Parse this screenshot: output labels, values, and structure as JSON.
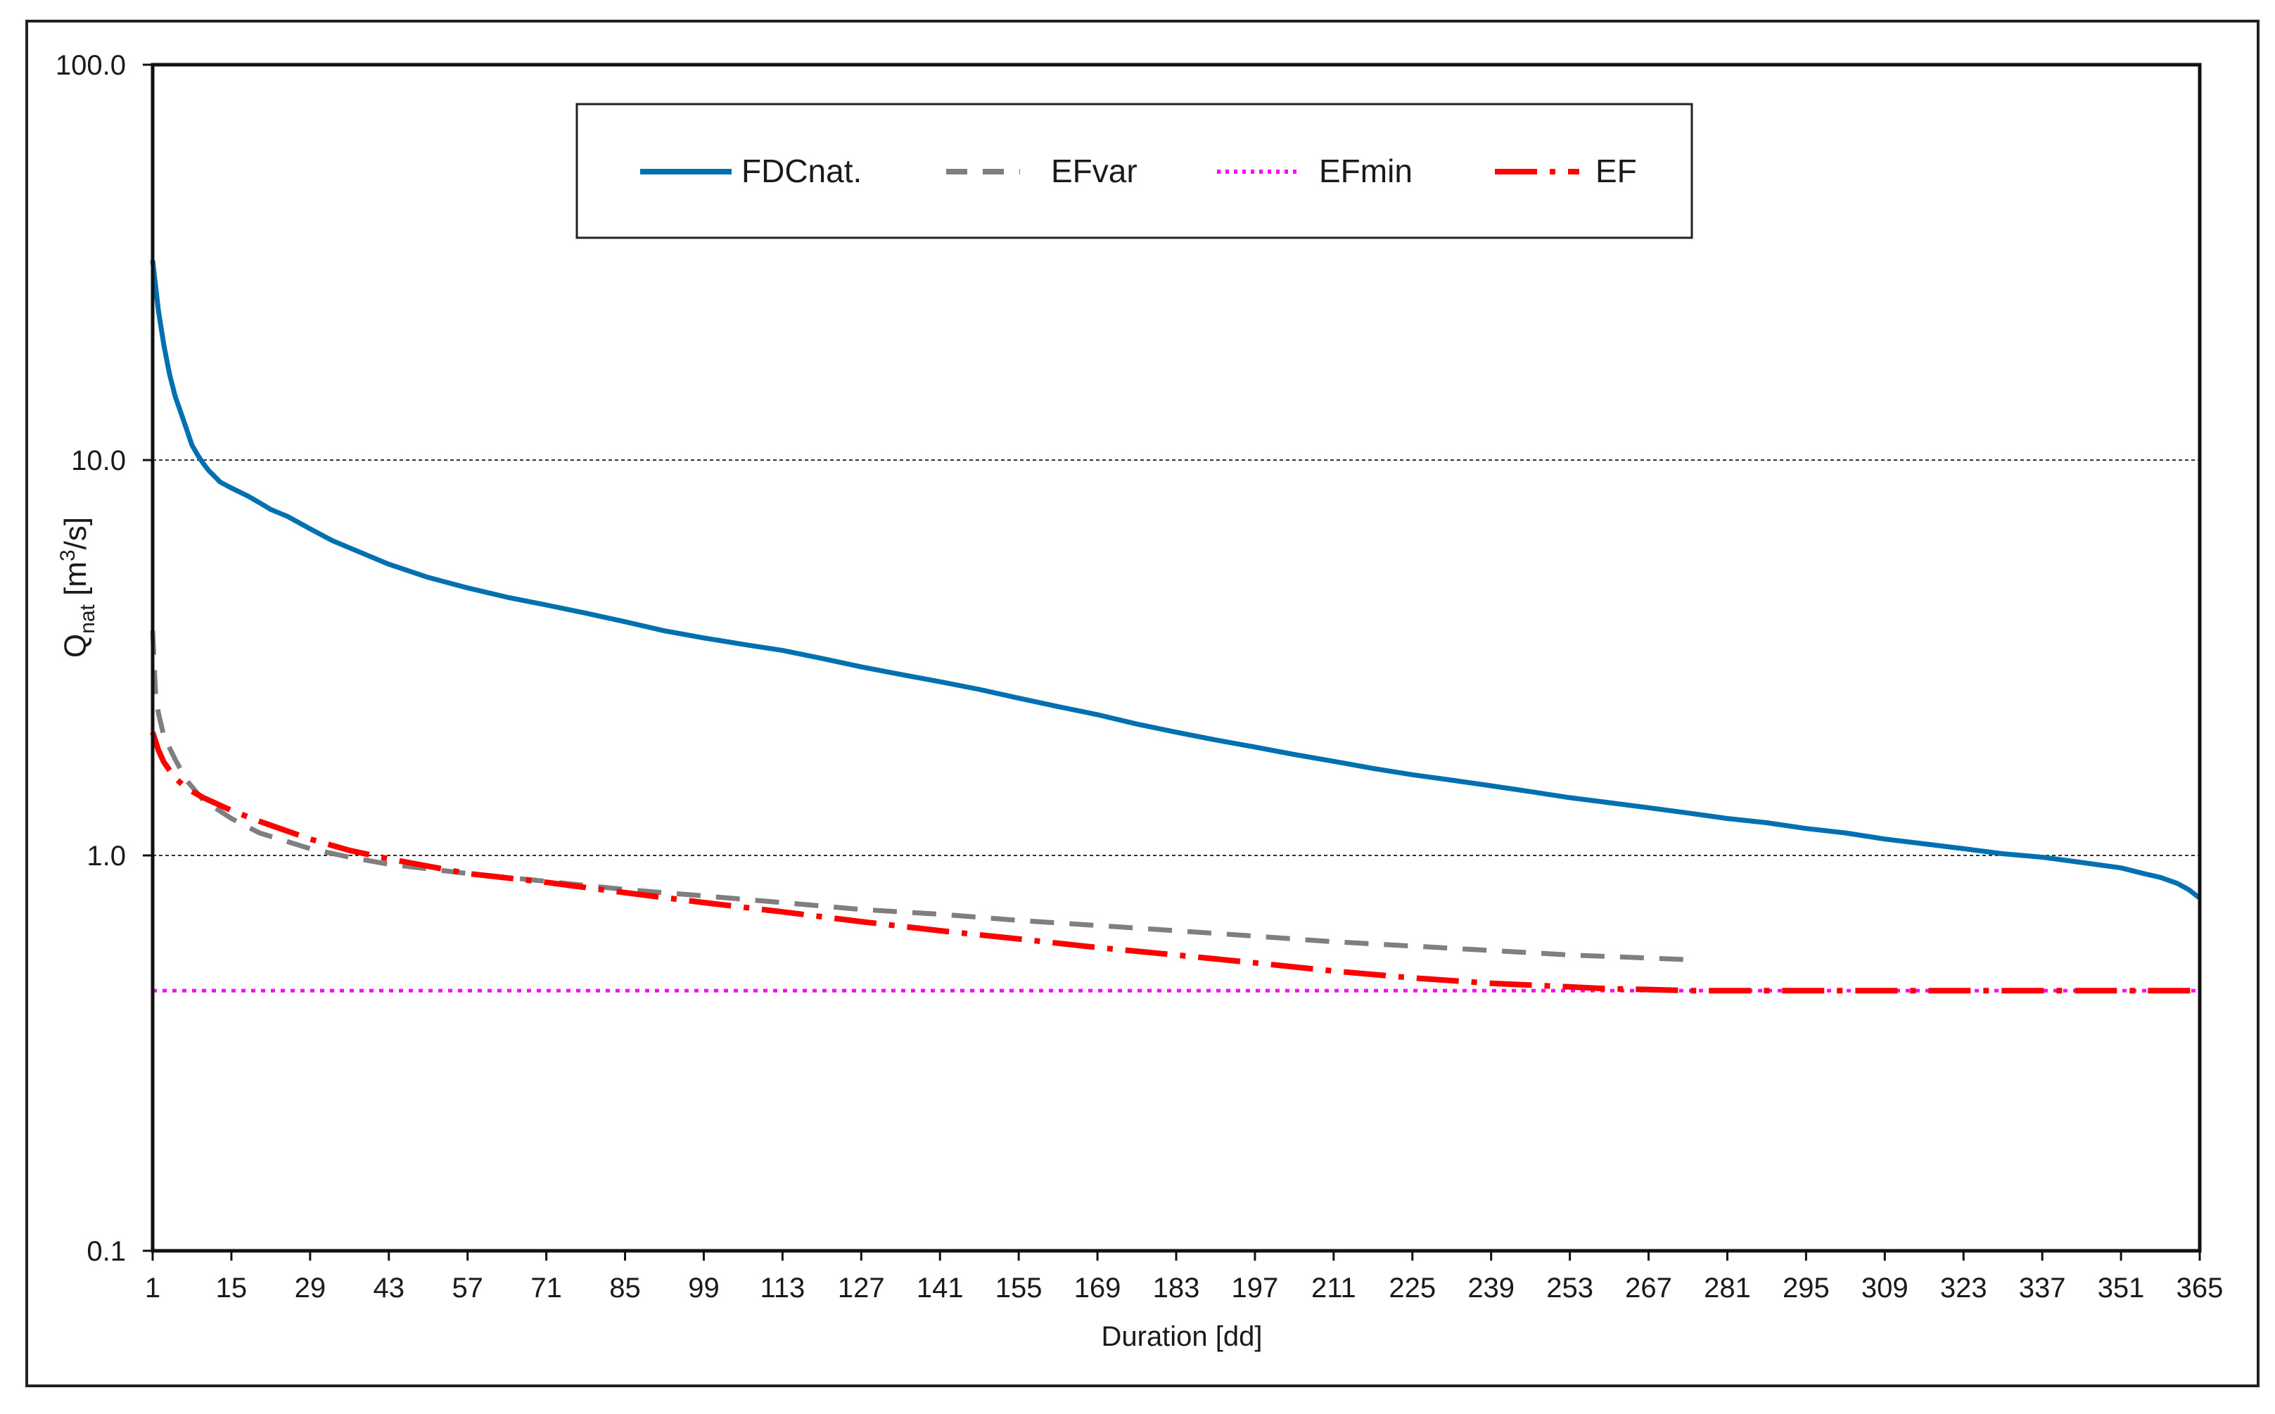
{
  "chart_data": {
    "type": "line",
    "yscale": "log",
    "xlabel": "Duration [dd]",
    "ylabel_main": "Q",
    "ylabel_sub": "nat",
    "ylabel_unit_pre": " [m",
    "ylabel_unit_sup": "3",
    "ylabel_unit_post": "/s]",
    "xlim": [
      1,
      365
    ],
    "ylim": [
      0.1,
      100
    ],
    "x_ticks": [
      "1",
      "15",
      "29",
      "43",
      "57",
      "71",
      "85",
      "99",
      "113",
      "127",
      "141",
      "155",
      "169",
      "183",
      "197",
      "211",
      "225",
      "239",
      "253",
      "267",
      "281",
      "295",
      "309",
      "323",
      "337",
      "351",
      "365"
    ],
    "x_tick_values": [
      1,
      15,
      29,
      43,
      57,
      71,
      85,
      99,
      113,
      127,
      141,
      155,
      169,
      183,
      197,
      211,
      225,
      239,
      253,
      267,
      281,
      295,
      309,
      323,
      337,
      351,
      365
    ],
    "y_ticks": [
      "0.1",
      "1.0",
      "10.0",
      "100.0"
    ],
    "y_tick_values": [
      0.1,
      1,
      10,
      100
    ],
    "gridlines_y": [
      1,
      10
    ],
    "legend_position": "top-center",
    "series": [
      {
        "name": "FDCnat.",
        "color": "#0070b0",
        "style": "solid",
        "x": [
          1,
          2,
          3,
          4,
          5,
          6,
          7,
          8,
          9,
          10,
          11,
          12,
          13,
          15,
          18,
          20,
          22,
          25,
          29,
          33,
          36,
          43,
          50,
          57,
          64,
          71,
          78,
          85,
          92,
          99,
          106,
          113,
          120,
          127,
          134,
          141,
          148,
          155,
          162,
          169,
          176,
          183,
          190,
          197,
          204,
          211,
          218,
          225,
          232,
          239,
          246,
          253,
          260,
          267,
          274,
          281,
          288,
          295,
          302,
          309,
          316,
          323,
          330,
          337,
          344,
          351,
          355,
          358,
          361,
          363,
          365
        ],
        "y": [
          32,
          24,
          19.5,
          16.5,
          14.5,
          13.2,
          12,
          10.9,
          10.3,
          9.8,
          9.4,
          9.1,
          8.8,
          8.5,
          8.1,
          7.8,
          7.5,
          7.2,
          6.7,
          6.25,
          6.0,
          5.45,
          5.05,
          4.75,
          4.5,
          4.3,
          4.1,
          3.9,
          3.7,
          3.55,
          3.42,
          3.3,
          3.15,
          3.0,
          2.87,
          2.75,
          2.63,
          2.5,
          2.38,
          2.27,
          2.15,
          2.05,
          1.96,
          1.88,
          1.8,
          1.73,
          1.66,
          1.6,
          1.55,
          1.5,
          1.45,
          1.4,
          1.36,
          1.32,
          1.28,
          1.24,
          1.21,
          1.17,
          1.14,
          1.1,
          1.07,
          1.04,
          1.01,
          0.99,
          0.96,
          0.93,
          0.9,
          0.88,
          0.85,
          0.82,
          0.78
        ]
      },
      {
        "name": "EFvar",
        "color": "#7f7f7f",
        "style": "dashed",
        "x": [
          1,
          1.5,
          2,
          3,
          5,
          7,
          10,
          15,
          20,
          29,
          36,
          43,
          57,
          71,
          85,
          99,
          113,
          127,
          141,
          155,
          169,
          183,
          197,
          211,
          225,
          239,
          253,
          267,
          274,
          274.5
        ],
        "y": [
          3.7,
          2.6,
          2.3,
          2.0,
          1.75,
          1.55,
          1.38,
          1.24,
          1.14,
          1.04,
          0.99,
          0.95,
          0.9,
          0.86,
          0.82,
          0.79,
          0.76,
          0.73,
          0.71,
          0.685,
          0.665,
          0.645,
          0.625,
          0.605,
          0.59,
          0.575,
          0.56,
          0.55,
          0.545,
          0.52
        ]
      },
      {
        "name": "EFmin",
        "color": "#ff00ff",
        "style": "dotted",
        "x": [
          1,
          365
        ],
        "y": [
          0.455,
          0.455
        ]
      },
      {
        "name": "EF",
        "color": "#ff0000",
        "style": "dashdot",
        "x": [
          1,
          2,
          3,
          5,
          7,
          10,
          15,
          20,
          29,
          36,
          43,
          57,
          71,
          85,
          99,
          113,
          127,
          141,
          155,
          169,
          183,
          197,
          211,
          225,
          239,
          253,
          260,
          267,
          274,
          281,
          295,
          309,
          323,
          337,
          351,
          365
        ],
        "y": [
          2.05,
          1.85,
          1.72,
          1.57,
          1.48,
          1.4,
          1.3,
          1.22,
          1.1,
          1.03,
          0.98,
          0.9,
          0.855,
          0.805,
          0.76,
          0.72,
          0.68,
          0.645,
          0.615,
          0.585,
          0.56,
          0.535,
          0.51,
          0.49,
          0.475,
          0.465,
          0.46,
          0.458,
          0.455,
          0.455,
          0.455,
          0.455,
          0.455,
          0.455,
          0.455,
          0.455
        ]
      }
    ]
  }
}
